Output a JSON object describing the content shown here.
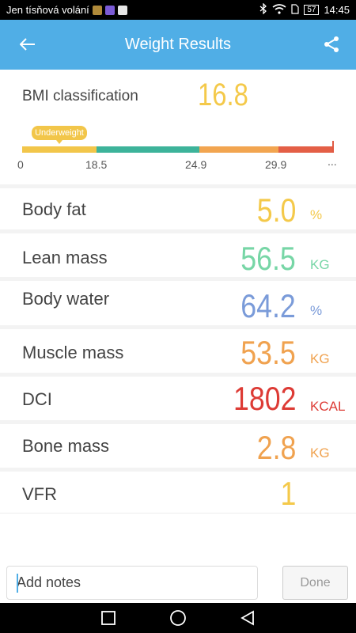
{
  "status_bar": {
    "carrier": "Jen tísňová volání",
    "battery": "57",
    "time": "14:45"
  },
  "app_bar": {
    "title": "Weight Results"
  },
  "bmi": {
    "label": "BMI classification",
    "value": "16.8",
    "value_color": "#f4c94a",
    "classification": "Underweight",
    "ticks": [
      "0",
      "18.5",
      "24.9",
      "29.9",
      "..."
    ],
    "segment_colors": [
      "#f2c64a",
      "#3db39a",
      "#f2a550",
      "#e45f46"
    ]
  },
  "metrics": [
    {
      "label": "Body fat",
      "value": "5.0",
      "unit": "%",
      "color": "#f4c94a"
    },
    {
      "label": "Lean mass",
      "value": "56.5",
      "unit": "KG",
      "color": "#77d6a6"
    },
    {
      "label": "Body water",
      "value": "64.2",
      "unit": "%",
      "color": "#7a9bd9"
    },
    {
      "label": "Muscle mass",
      "value": "53.5",
      "unit": "KG",
      "color": "#f0a24f"
    },
    {
      "label": "DCI",
      "value": "1802",
      "unit": "KCAL",
      "color": "#dd3b35"
    },
    {
      "label": "Bone mass",
      "value": "2.8",
      "unit": "KG",
      "color": "#f0a24f"
    },
    {
      "label": "VFR",
      "value": "1",
      "unit": "",
      "color": "#f4c94a"
    }
  ],
  "footer": {
    "notes_placeholder": "Add notes",
    "done_label": "Done"
  }
}
